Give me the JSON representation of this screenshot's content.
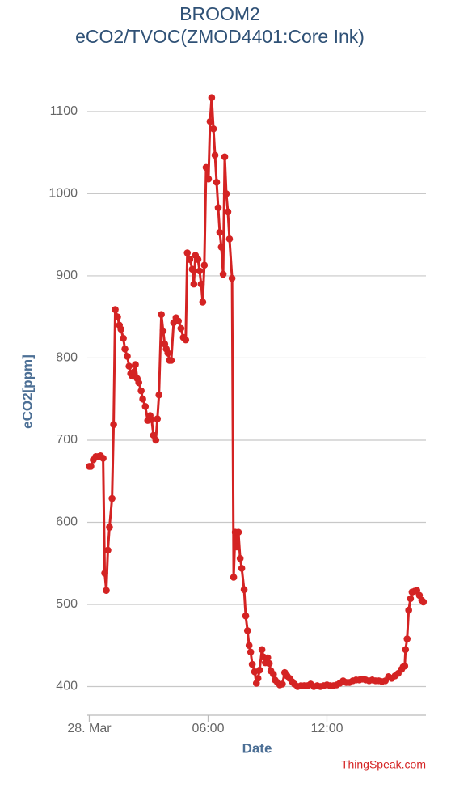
{
  "chart_data": {
    "type": "line",
    "title": "BROOM2",
    "subtitle": "eCO2/TVOC(ZMOD4401:Core Ink)",
    "xlabel": "Date",
    "ylabel": "eCO2[ppm]",
    "credit": "ThingSpeak.com",
    "xlim": [
      -0.1,
      17
    ],
    "xticks": [
      {
        "value": 0,
        "label": "28. Mar"
      },
      {
        "value": 6,
        "label": "06:00"
      },
      {
        "value": 12,
        "label": "12:00"
      }
    ],
    "ylim": [
      365,
      1130
    ],
    "yticks": [
      400,
      500,
      600,
      700,
      800,
      900,
      1000,
      1100
    ],
    "grid": true,
    "x": [
      0,
      0.08,
      0.2,
      0.33,
      0.45,
      0.57,
      0.7,
      0.78,
      0.86,
      0.94,
      1.02,
      1.15,
      1.23,
      1.31,
      1.43,
      1.52,
      1.6,
      1.72,
      1.8,
      1.92,
      2.01,
      2.09,
      2.17,
      2.25,
      2.33,
      2.42,
      2.5,
      2.62,
      2.7,
      2.83,
      2.95,
      3.07,
      3.15,
      3.24,
      3.36,
      3.44,
      3.52,
      3.64,
      3.73,
      3.81,
      3.89,
      3.97,
      4.05,
      4.14,
      4.26,
      4.38,
      4.5,
      4.63,
      4.75,
      4.87,
      4.95,
      5.08,
      5.2,
      5.28,
      5.36,
      5.49,
      5.57,
      5.65,
      5.73,
      5.81,
      5.9,
      6.02,
      6.1,
      6.18,
      6.27,
      6.35,
      6.43,
      6.51,
      6.59,
      6.67,
      6.76,
      6.84,
      6.92,
      7.0,
      7.08,
      7.21,
      7.29,
      7.37,
      7.45,
      7.53,
      7.62,
      7.7,
      7.82,
      7.9,
      7.99,
      8.07,
      8.15,
      8.23,
      8.35,
      8.44,
      8.52,
      8.6,
      8.72,
      8.8,
      8.89,
      9.01,
      9.09,
      9.17,
      9.3,
      9.38,
      9.5,
      9.62,
      9.75,
      9.87,
      9.99,
      10.11,
      10.24,
      10.36,
      10.52,
      10.69,
      10.85,
      11.02,
      11.18,
      11.34,
      11.51,
      11.67,
      11.83,
      12.0,
      12.16,
      12.33,
      12.49,
      12.65,
      12.82,
      12.98,
      13.14,
      13.31,
      13.47,
      13.64,
      13.8,
      13.96,
      14.13,
      14.29,
      14.46,
      14.62,
      14.78,
      14.95,
      15.11,
      15.27,
      15.44,
      15.6,
      15.77,
      15.85,
      15.93,
      15.97,
      16.05,
      16.13,
      16.22,
      16.3,
      16.42,
      16.54,
      16.67,
      16.79,
      16.87
    ],
    "series": [
      {
        "name": "eCO2",
        "color": "#d42323",
        "values": [
          668,
          668,
          676,
          680,
          680,
          681,
          678,
          538,
          517,
          566,
          594,
          629,
          719,
          859,
          850,
          840,
          835,
          824,
          811,
          802,
          790,
          781,
          778,
          783,
          792,
          775,
          770,
          760,
          750,
          741,
          724,
          730,
          725,
          706,
          700,
          726,
          755,
          853,
          833,
          817,
          811,
          806,
          797,
          797,
          843,
          849,
          845,
          836,
          825,
          822,
          928,
          920,
          908,
          890,
          925,
          920,
          906,
          890,
          868,
          913,
          1032,
          1018,
          1088,
          1117,
          1079,
          1047,
          1014,
          983,
          953,
          935,
          902,
          1045,
          1000,
          978,
          945,
          897,
          533,
          588,
          570,
          588,
          556,
          544,
          518,
          486,
          468,
          450,
          442,
          427,
          418,
          404,
          410,
          420,
          445,
          436,
          429,
          435,
          428,
          419,
          415,
          408,
          405,
          402,
          403,
          417,
          413,
          410,
          406,
          403,
          400,
          401,
          401,
          401,
          403,
          400,
          401,
          400,
          401,
          402,
          401,
          401,
          402,
          404,
          407,
          405,
          405,
          407,
          408,
          408,
          409,
          408,
          407,
          408,
          407,
          407,
          406,
          407,
          412,
          410,
          413,
          416,
          421,
          424,
          425,
          445,
          458,
          493,
          507,
          515,
          516,
          517,
          511,
          505,
          503
        ]
      }
    ]
  }
}
